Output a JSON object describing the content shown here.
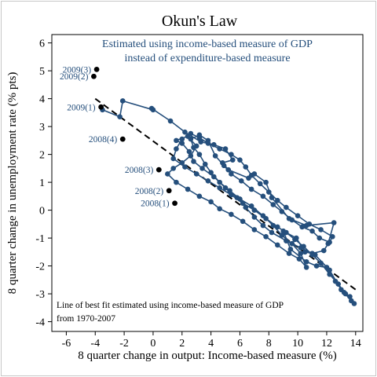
{
  "chart_data": {
    "type": "scatter",
    "title": "Okun's Law",
    "subtitle_lines": [
      "Estimated using income-based measure of GDP",
      "instead of expenditure-based measure"
    ],
    "xlabel": "8 quarter change in output: Income-based measure (%)",
    "ylabel": "8 quarter change in unemployment rate (% pts)",
    "xlim": [
      -7,
      14.5
    ],
    "ylim": [
      -4.35,
      6.3
    ],
    "x_ticks": [
      "-6",
      "-4",
      "-2",
      "0",
      "2",
      "4",
      "6",
      "8",
      "10",
      "12",
      "14"
    ],
    "y_ticks": [
      "-4",
      "-3",
      "-2",
      "-1",
      "0",
      "1",
      "2",
      "3",
      "4",
      "5",
      "6"
    ],
    "grid": false,
    "note_lines": [
      "Line of best fit estimated using income-based measure of GDP",
      "from 1970-2007"
    ],
    "colors": {
      "series": "#254f7c",
      "highlight": "#000000",
      "label": "#254f7c",
      "fit_line": "#000000"
    },
    "fit_line": {
      "style": "dashed",
      "points": [
        [
          -4,
          4.0
        ],
        [
          14,
          -2.85
        ]
      ]
    },
    "series": [
      {
        "marker": "circle",
        "connected": true,
        "points": [
          [
            -3.5,
            3.6
          ],
          [
            -2.3,
            3.35
          ],
          [
            -2.1,
            3.92
          ],
          [
            0.0,
            3.6
          ],
          [
            -0.1,
            3.65
          ],
          [
            1.2,
            3.2
          ],
          [
            2.2,
            2.8
          ],
          [
            3.3,
            2.45
          ],
          [
            4.2,
            2.35
          ],
          [
            5.0,
            2.2
          ],
          [
            5.5,
            1.8
          ],
          [
            4.8,
            1.7
          ],
          [
            5.2,
            1.45
          ],
          [
            6.6,
            1.15
          ],
          [
            7.0,
            1.3
          ],
          [
            7.8,
            1.0
          ],
          [
            8.2,
            0.45
          ],
          [
            9.4,
            -0.3
          ],
          [
            10.6,
            -0.55
          ],
          [
            12.5,
            -0.45
          ],
          [
            12.1,
            -1.2
          ],
          [
            11.8,
            -1.45
          ],
          [
            11.0,
            -1.55
          ],
          [
            10.5,
            -1.5
          ],
          [
            9.9,
            -1.0
          ],
          [
            9.0,
            -0.75
          ],
          [
            9.5,
            -1.4
          ],
          [
            10.6,
            -1.85
          ],
          [
            11.3,
            -2.0
          ],
          [
            12.0,
            -2.05
          ],
          [
            12.6,
            -2.55
          ],
          [
            13.2,
            -2.95
          ],
          [
            13.6,
            -3.1
          ],
          [
            13.9,
            -3.35
          ],
          [
            13.0,
            -2.85
          ],
          [
            12.2,
            -2.15
          ],
          [
            11.2,
            -1.6
          ],
          [
            10.2,
            -1.35
          ],
          [
            9.2,
            -1.1
          ],
          [
            8.2,
            -0.8
          ],
          [
            7.6,
            -0.55
          ],
          [
            7.0,
            -0.25
          ],
          [
            6.4,
            0.1
          ],
          [
            5.8,
            0.45
          ],
          [
            5.0,
            0.8
          ],
          [
            4.2,
            1.2
          ],
          [
            3.4,
            1.5
          ],
          [
            2.8,
            1.75
          ],
          [
            2.5,
            2.1
          ],
          [
            2.0,
            2.4
          ],
          [
            1.6,
            2.5
          ],
          [
            2.4,
            2.65
          ],
          [
            3.0,
            2.3
          ],
          [
            2.6,
            1.95
          ],
          [
            2.0,
            1.7
          ],
          [
            1.4,
            1.5
          ],
          [
            1.0,
            1.3
          ],
          [
            1.6,
            1.0
          ],
          [
            2.4,
            0.75
          ],
          [
            3.2,
            0.5
          ],
          [
            4.0,
            0.3
          ],
          [
            4.6,
            0.05
          ],
          [
            5.4,
            -0.15
          ],
          [
            6.2,
            -0.4
          ],
          [
            7.0,
            -0.7
          ],
          [
            7.8,
            -0.95
          ],
          [
            8.6,
            -1.25
          ],
          [
            9.4,
            -1.55
          ],
          [
            10.1,
            -1.75
          ],
          [
            10.6,
            -2.05
          ],
          [
            10.2,
            -1.55
          ],
          [
            9.6,
            -1.2
          ],
          [
            8.9,
            -0.9
          ],
          [
            8.3,
            -0.55
          ],
          [
            7.6,
            -0.2
          ],
          [
            6.8,
            0.15
          ],
          [
            6.0,
            0.4
          ],
          [
            5.3,
            0.7
          ],
          [
            4.6,
            1.0
          ],
          [
            4.0,
            1.35
          ],
          [
            3.6,
            1.65
          ],
          [
            3.2,
            2.0
          ],
          [
            2.8,
            2.25
          ],
          [
            2.6,
            2.55
          ],
          [
            3.2,
            2.7
          ],
          [
            3.8,
            2.5
          ],
          [
            4.3,
            1.95
          ],
          [
            4.9,
            1.6
          ],
          [
            5.4,
            1.3
          ],
          [
            6.1,
            1.05
          ],
          [
            6.8,
            0.75
          ],
          [
            7.6,
            0.5
          ],
          [
            8.3,
            0.2
          ],
          [
            8.9,
            -0.05
          ],
          [
            9.6,
            -0.35
          ],
          [
            10.3,
            -0.6
          ],
          [
            11.0,
            -0.75
          ],
          [
            11.5,
            -1.0
          ],
          [
            12.2,
            -1.15
          ],
          [
            12.4,
            -0.95
          ],
          [
            11.6,
            -0.7
          ],
          [
            10.8,
            -0.5
          ],
          [
            10.0,
            -0.2
          ],
          [
            9.2,
            0.1
          ],
          [
            8.6,
            0.35
          ],
          [
            8.0,
            0.65
          ],
          [
            7.4,
            0.95
          ],
          [
            6.8,
            1.25
          ],
          [
            6.4,
            1.55
          ],
          [
            6.0,
            1.8
          ],
          [
            5.4,
            2.0
          ],
          [
            4.6,
            2.2
          ],
          [
            3.8,
            2.4
          ],
          [
            3.2,
            2.6
          ],
          [
            2.6,
            2.75
          ],
          [
            2.0,
            2.55
          ],
          [
            1.6,
            2.2
          ],
          [
            1.4,
            1.85
          ],
          [
            2.2,
            1.55
          ],
          [
            3.0,
            1.3
          ],
          [
            3.8,
            1.05
          ],
          [
            4.6,
            0.8
          ],
          [
            5.4,
            0.55
          ],
          [
            6.2,
            0.25
          ],
          [
            7.0,
            0.0
          ],
          [
            7.8,
            -0.3
          ],
          [
            8.6,
            -0.6
          ],
          [
            9.2,
            -0.8
          ],
          [
            9.8,
            -1.05
          ],
          [
            10.4,
            -1.3
          ],
          [
            11.0,
            -1.6
          ],
          [
            11.6,
            -1.9
          ],
          [
            12.2,
            -2.3
          ],
          [
            12.8,
            -2.65
          ],
          [
            13.3,
            -3.0
          ],
          [
            13.7,
            -3.25
          ]
        ]
      },
      {
        "marker": "circle",
        "connected": false,
        "highlighted": true,
        "points": [
          {
            "x": 1.5,
            "y": 0.25,
            "label": "2008(1)"
          },
          {
            "x": 1.1,
            "y": 0.7,
            "label": "2008(2)"
          },
          {
            "x": 0.4,
            "y": 1.45,
            "label": "2008(3)"
          },
          {
            "x": -2.1,
            "y": 2.55,
            "label": "2008(4)"
          },
          {
            "x": -3.6,
            "y": 3.7,
            "label": "2009(1)"
          },
          {
            "x": -4.1,
            "y": 4.8,
            "label": "2009(2)"
          },
          {
            "x": -3.9,
            "y": 5.05,
            "label": "2009(3)"
          }
        ]
      }
    ]
  }
}
